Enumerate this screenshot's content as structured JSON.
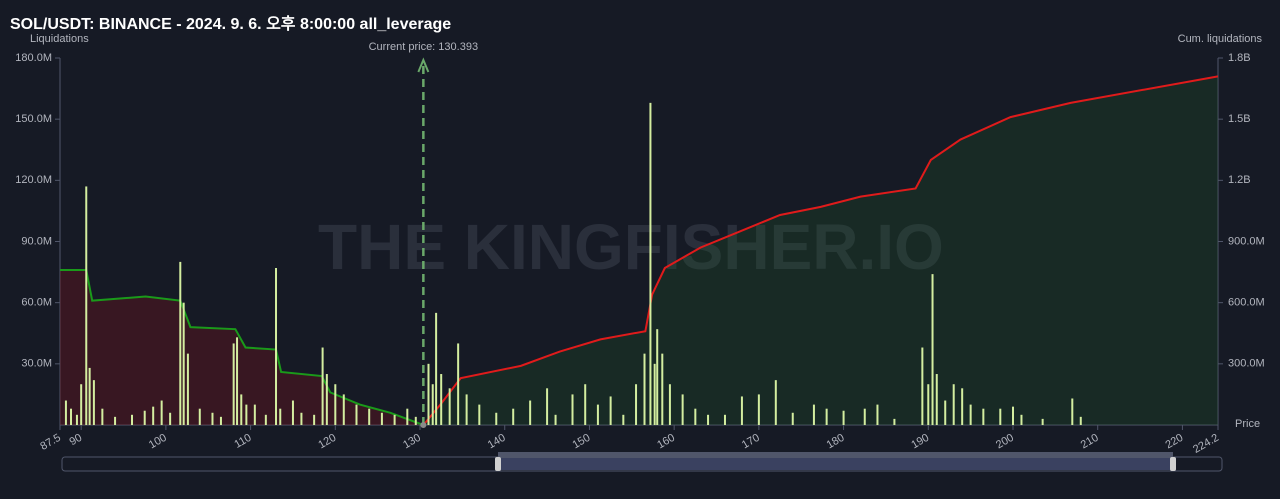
{
  "chart_data": {
    "type": "liquidation",
    "title": "SOL/USDT: BINANCE - 2024. 9. 6. 오후 8:00:00 all_leverage",
    "y_label": "Liquidations",
    "y2_label": "Cum. liquidations",
    "x_label": "Price",
    "watermark": "THE KINGFISHER.IO",
    "current_price": {
      "value": 130.393,
      "label": "Current price: 130.393"
    },
    "xlim": [
      87.5,
      224.2
    ],
    "xticks": [
      87.5,
      90,
      100,
      110,
      120,
      130,
      140,
      150,
      160,
      170,
      180,
      190,
      200,
      210,
      220,
      224.2
    ],
    "ylim": [
      0,
      180
    ],
    "yticks": [
      {
        "value": 30,
        "label": "30.0M"
      },
      {
        "value": 60,
        "label": "60.0M"
      },
      {
        "value": 90,
        "label": "90.0M"
      },
      {
        "value": 120,
        "label": "120.0M"
      },
      {
        "value": 150,
        "label": "150.0M"
      },
      {
        "value": 180,
        "label": "180.0M"
      }
    ],
    "y2lim": [
      0,
      1800
    ],
    "y2ticks": [
      {
        "value": 300,
        "label": "300.0M"
      },
      {
        "value": 600,
        "label": "600.0M"
      },
      {
        "value": 900,
        "label": "900.0M"
      },
      {
        "value": 1200,
        "label": "1.2B"
      },
      {
        "value": 1500,
        "label": "1.5B"
      },
      {
        "value": 1800,
        "label": "1.8B"
      }
    ],
    "grid": false,
    "series": [
      {
        "type": "bar",
        "color": "#d4eea0",
        "x": [
          88.2,
          88.8,
          89.5,
          90.0,
          90.6,
          91.0,
          91.5,
          92.5,
          94,
          96,
          97.5,
          98.5,
          99.5,
          100.5,
          101.7,
          102.1,
          102.6,
          104,
          105.5,
          106.5,
          108.0,
          108.4,
          108.9,
          109.5,
          110.5,
          111.8,
          113.0,
          113.5,
          115,
          116,
          117.5,
          118.5,
          119,
          120,
          121,
          122.5,
          124,
          125.5,
          127,
          128.5,
          129.5,
          131.0,
          131.5,
          131.9,
          132.5,
          133.5,
          134.5,
          135.5,
          137,
          139,
          141,
          143,
          145,
          146,
          148,
          149.5,
          151,
          152.5,
          154,
          155.5,
          156.5,
          157.2,
          157.7,
          158,
          158.6,
          159.5,
          161,
          162.5,
          164,
          166,
          168,
          170,
          172,
          174,
          176.5,
          178,
          180,
          182.5,
          184,
          186,
          189.3,
          190.0,
          190.5,
          191,
          192,
          193,
          194,
          195,
          196.5,
          198.5,
          200,
          201,
          203.5,
          207,
          208
        ],
        "values": [
          12,
          8,
          5,
          20,
          117,
          28,
          22,
          8,
          4,
          5,
          7,
          9,
          12,
          6,
          80,
          60,
          35,
          8,
          6,
          4,
          40,
          43,
          15,
          10,
          10,
          5,
          77,
          8,
          12,
          6,
          5,
          38,
          25,
          20,
          15,
          10,
          8,
          6,
          5,
          8,
          4,
          30,
          20,
          55,
          25,
          18,
          40,
          15,
          10,
          6,
          8,
          12,
          18,
          5,
          15,
          20,
          10,
          14,
          5,
          20,
          35,
          158,
          30,
          47,
          35,
          20,
          15,
          8,
          5,
          5,
          14,
          15,
          22,
          6,
          10,
          8,
          7,
          8,
          10,
          3,
          38,
          20,
          74,
          25,
          12,
          20,
          18,
          10,
          8,
          8,
          9,
          5,
          3,
          13,
          4
        ]
      },
      {
        "type": "line",
        "axis": "y2",
        "color": "#1a9a1a",
        "fill": "rgba(120,20,30,0.35)",
        "x": [
          87.5,
          90.6,
          91.3,
          97.6,
          101.7,
          102.9,
          108.2,
          109.4,
          113,
          113.6,
          118.4,
          119.4,
          122.9,
          126.5,
          130.393
        ],
        "values": [
          760,
          760,
          610,
          630,
          610,
          480,
          470,
          380,
          370,
          260,
          240,
          160,
          100,
          60,
          0
        ]
      },
      {
        "type": "line",
        "axis": "y2",
        "color": "#e01b1b",
        "fill": "rgba(30,90,40,0.25)",
        "x": [
          130.393,
          132.4,
          134.8,
          141.9,
          146.5,
          151.3,
          156.6,
          157.4,
          158.9,
          163.1,
          167.8,
          172.5,
          177.3,
          182,
          188.5,
          190.3,
          193.8,
          199.7,
          206.8,
          224.2
        ],
        "values": [
          0,
          100,
          230,
          290,
          360,
          420,
          460,
          640,
          770,
          870,
          950,
          1030,
          1070,
          1120,
          1160,
          1300,
          1400,
          1510,
          1580,
          1710
        ]
      }
    ]
  }
}
